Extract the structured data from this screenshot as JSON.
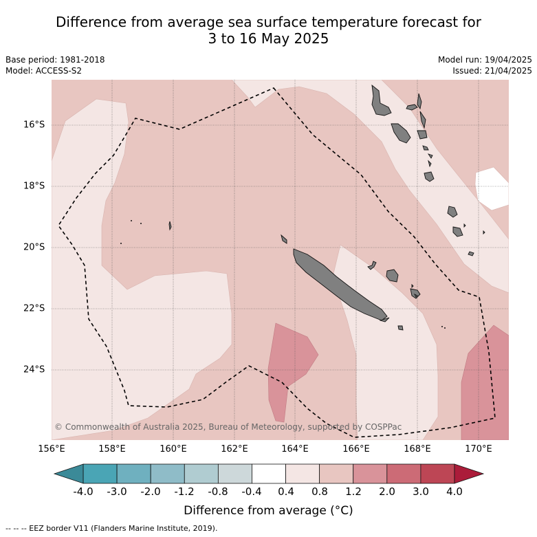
{
  "title": {
    "line1": "Difference from average sea surface temperature forecast for",
    "line2": "3 to 16 May 2025"
  },
  "meta": {
    "base_period": "Base period: 1981-2018",
    "model": "Model: ACCESS-S2",
    "model_run": "Model run: 19/04/2025",
    "issued": "Issued: 21/04/2025"
  },
  "map": {
    "lon_labels": [
      "156°E",
      "158°E",
      "160°E",
      "162°E",
      "164°E",
      "166°E",
      "168°E",
      "170°E"
    ],
    "lat_labels": [
      "16°S",
      "18°S",
      "20°S",
      "22°S",
      "24°S"
    ],
    "copyright": "© Commonwealth of Australia 2025, Bureau of Meteorology, supported by COSPPac"
  },
  "colorbar": {
    "ticks": [
      "-4.0",
      "-3.0",
      "-2.0",
      "-1.2",
      "-0.8",
      "-0.4",
      "0.4",
      "0.8",
      "1.2",
      "2.0",
      "3.0",
      "4.0"
    ],
    "colors": [
      "#4aa5b5",
      "#6fb0bf",
      "#8fbcc8",
      "#b0ccd1",
      "#cdd8da",
      "#ffffff",
      "#f4e6e4",
      "#e8c6c1",
      "#d9939a",
      "#cc6b76",
      "#bd4655"
    ],
    "low_extend_color": "#3b8a98",
    "high_extend_color": "#ab1c3a",
    "title": "Difference from average (°C)"
  },
  "legend": {
    "eez_note": "-- -- -- EEZ border V11 (Flanders Marine Institute, 2019)."
  },
  "colors": {
    "class_0_4_0_8": "#f4e6e4",
    "class_0_8_1_2": "#e8c6c1",
    "class_1_2_2_0": "#d9939a",
    "land": "#808080"
  }
}
